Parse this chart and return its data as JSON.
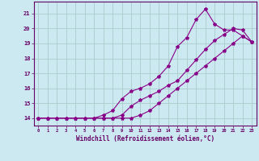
{
  "xlabel": "Windchill (Refroidissement éolien,°C)",
  "bg_color": "#cce8f0",
  "grid_color": "#aacccc",
  "line_color": "#880088",
  "xlim": [
    -0.5,
    23.5
  ],
  "ylim": [
    13.5,
    21.8
  ],
  "xtick_vals": [
    0,
    1,
    2,
    3,
    4,
    5,
    6,
    7,
    8,
    9,
    10,
    11,
    12,
    13,
    14,
    15,
    16,
    17,
    18,
    19,
    20,
    21,
    22,
    23
  ],
  "ytick_vals": [
    14,
    15,
    16,
    17,
    18,
    19,
    20,
    21
  ],
  "line1_x": [
    0,
    1,
    2,
    3,
    4,
    5,
    6,
    7,
    8,
    9,
    10,
    11,
    12,
    13,
    14,
    15,
    16,
    17,
    18,
    19,
    20,
    21,
    22,
    23
  ],
  "line1_y": [
    14.0,
    14.0,
    14.0,
    14.0,
    14.0,
    14.0,
    14.0,
    14.2,
    14.5,
    15.3,
    15.8,
    16.0,
    16.3,
    16.8,
    17.5,
    18.8,
    19.4,
    20.6,
    21.3,
    20.3,
    19.9,
    19.9,
    19.5,
    19.1
  ],
  "line2_x": [
    0,
    1,
    2,
    3,
    4,
    5,
    6,
    7,
    8,
    9,
    10,
    11,
    12,
    13,
    14,
    15,
    16,
    17,
    18,
    19,
    20,
    21,
    22,
    23
  ],
  "line2_y": [
    14.0,
    14.0,
    14.0,
    14.0,
    14.0,
    14.0,
    14.0,
    14.0,
    14.0,
    14.2,
    14.8,
    15.2,
    15.5,
    15.8,
    16.2,
    16.5,
    17.2,
    17.9,
    18.6,
    19.2,
    19.6,
    20.0,
    19.9,
    19.1
  ],
  "line3_x": [
    0,
    1,
    2,
    3,
    4,
    5,
    6,
    7,
    8,
    9,
    10,
    11,
    12,
    13,
    14,
    15,
    16,
    17,
    18,
    19,
    20,
    21,
    22,
    23
  ],
  "line3_y": [
    14.0,
    14.0,
    14.0,
    14.0,
    14.0,
    14.0,
    14.0,
    14.0,
    14.0,
    14.0,
    14.0,
    14.2,
    14.5,
    15.0,
    15.5,
    16.0,
    16.5,
    17.0,
    17.5,
    18.0,
    18.5,
    19.0,
    19.5,
    19.1
  ]
}
